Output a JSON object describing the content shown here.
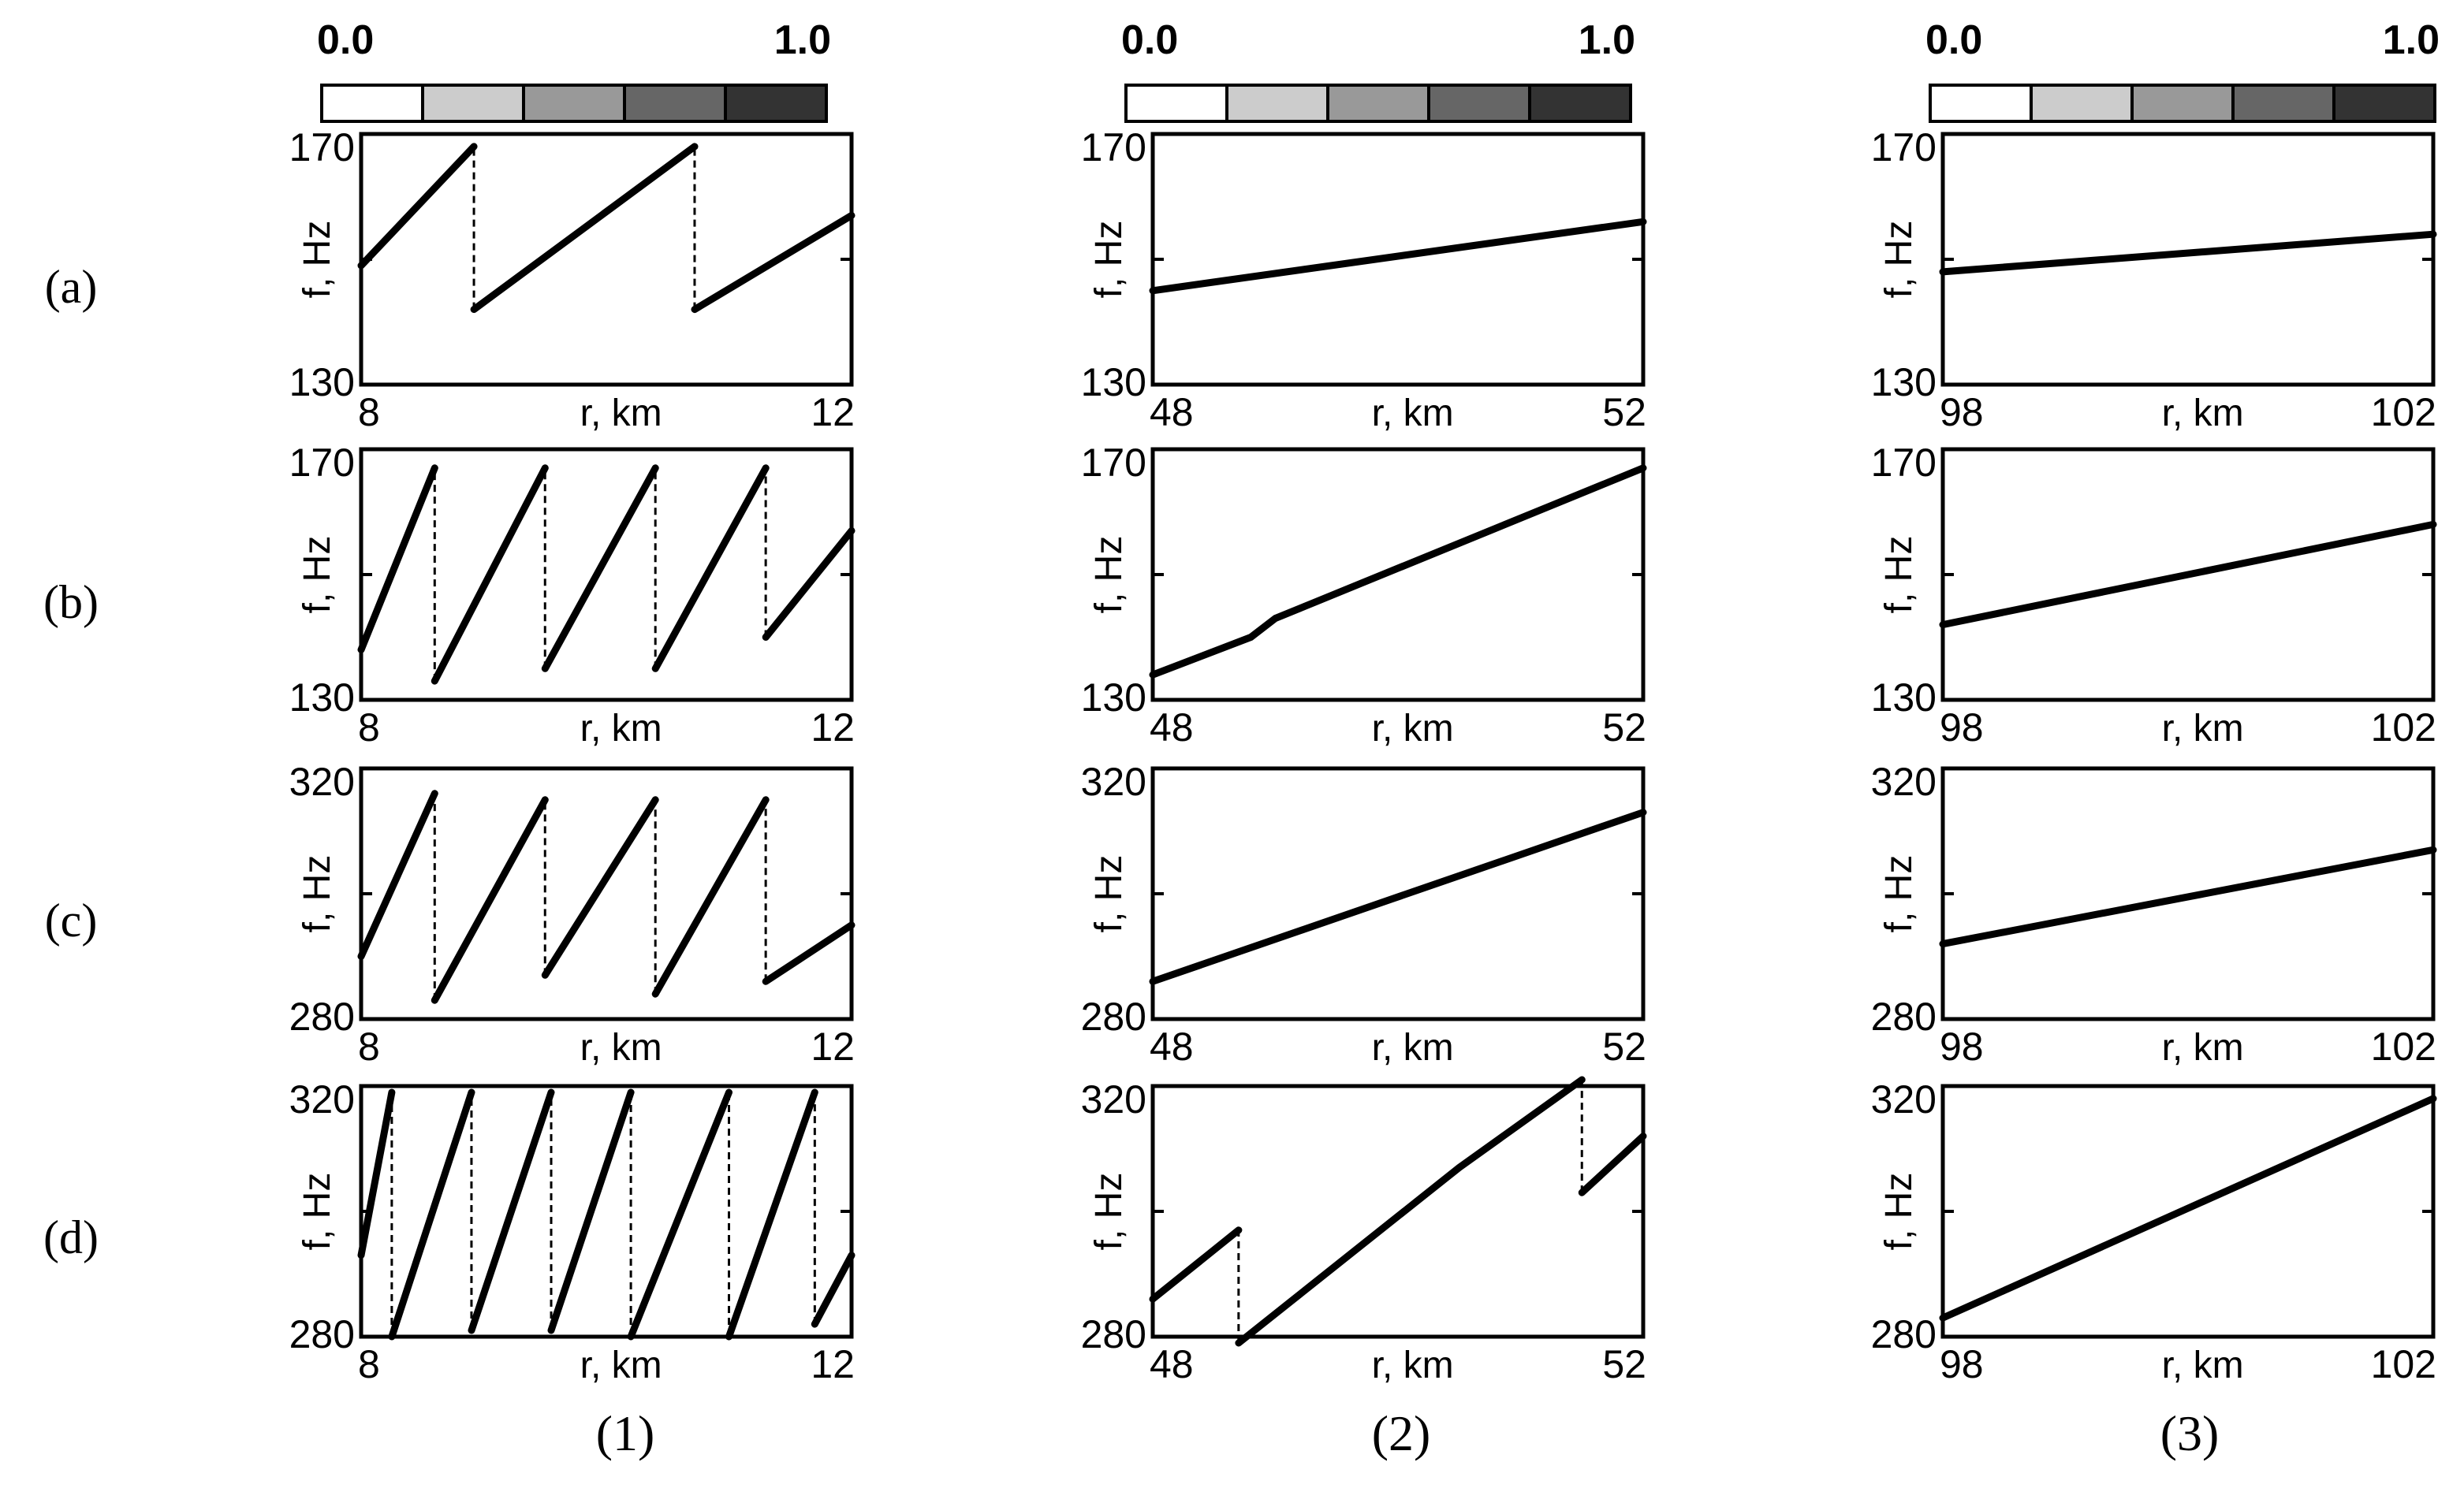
{
  "colorbar": {
    "min_label": "0.0",
    "max_label": "1.0",
    "colors": [
      "#ffffff",
      "#cccccc",
      "#999999",
      "#666666",
      "#333333"
    ]
  },
  "row_labels": [
    "(a)",
    "(b)",
    "(c)",
    "(d)"
  ],
  "column_labels": [
    "(1)",
    "(2)",
    "(3)"
  ],
  "chart_data": [
    {
      "id": "a1",
      "type": "line",
      "row": 0,
      "col": 0,
      "xlabel": "r, km",
      "ylabel": "f, Hz",
      "xlim": [
        8,
        12
      ],
      "ylim": [
        130,
        170
      ],
      "x_tick_labels": [
        "8",
        "12"
      ],
      "y_tick_labels": [
        "130",
        "170"
      ],
      "y_mid_tick": 150,
      "segments": [
        {
          "x": [
            8,
            8.92
          ],
          "y": [
            149,
            168
          ]
        },
        {
          "x": [
            8.92,
            10.72
          ],
          "y": [
            142,
            168
          ]
        },
        {
          "x": [
            10.72,
            12
          ],
          "y": [
            142,
            157
          ]
        }
      ],
      "jumps": [
        {
          "x": 8.92,
          "y": [
            142,
            168
          ]
        },
        {
          "x": 10.72,
          "y": [
            142,
            168
          ]
        }
      ]
    },
    {
      "id": "a2",
      "type": "line",
      "row": 0,
      "col": 1,
      "xlabel": "r, km",
      "ylabel": "f, Hz",
      "xlim": [
        48,
        52
      ],
      "ylim": [
        130,
        170
      ],
      "x_tick_labels": [
        "48",
        "52"
      ],
      "y_tick_labels": [
        "130",
        "170"
      ],
      "y_mid_tick": 150,
      "segments": [
        {
          "x": [
            48,
            52
          ],
          "y": [
            145,
            156
          ]
        }
      ],
      "jumps": []
    },
    {
      "id": "a3",
      "type": "line",
      "row": 0,
      "col": 2,
      "xlabel": "r, km",
      "ylabel": "f, Hz",
      "xlim": [
        98,
        102
      ],
      "ylim": [
        130,
        170
      ],
      "x_tick_labels": [
        "98",
        "102"
      ],
      "y_tick_labels": [
        "130",
        "170"
      ],
      "y_mid_tick": 150,
      "segments": [
        {
          "x": [
            98,
            102
          ],
          "y": [
            148,
            154
          ]
        }
      ],
      "jumps": []
    },
    {
      "id": "b1",
      "type": "line",
      "row": 1,
      "col": 0,
      "xlabel": "r, km",
      "ylabel": "f, Hz",
      "xlim": [
        8,
        12
      ],
      "ylim": [
        130,
        170
      ],
      "x_tick_labels": [
        "8",
        "12"
      ],
      "y_tick_labels": [
        "130",
        "170"
      ],
      "y_mid_tick": 150,
      "segments": [
        {
          "x": [
            8,
            8.6
          ],
          "y": [
            138,
            167
          ]
        },
        {
          "x": [
            8.6,
            9.5
          ],
          "y": [
            133,
            167
          ]
        },
        {
          "x": [
            9.5,
            10.4
          ],
          "y": [
            135,
            167
          ]
        },
        {
          "x": [
            10.4,
            11.3
          ],
          "y": [
            135,
            167
          ]
        },
        {
          "x": [
            11.3,
            12
          ],
          "y": [
            140,
            157
          ]
        }
      ],
      "jumps": [
        {
          "x": 8.6,
          "y": [
            133,
            167
          ]
        },
        {
          "x": 9.5,
          "y": [
            135,
            167
          ]
        },
        {
          "x": 10.4,
          "y": [
            135,
            167
          ]
        },
        {
          "x": 11.3,
          "y": [
            140,
            167
          ]
        }
      ]
    },
    {
      "id": "b2",
      "type": "line",
      "row": 1,
      "col": 1,
      "xlabel": "r, km",
      "ylabel": "f, Hz",
      "xlim": [
        48,
        52
      ],
      "ylim": [
        130,
        170
      ],
      "x_tick_labels": [
        "48",
        "52"
      ],
      "y_tick_labels": [
        "130",
        "170"
      ],
      "y_mid_tick": 150,
      "segments": [
        {
          "x": [
            48,
            48.8,
            49,
            52
          ],
          "y": [
            134,
            140,
            143,
            167
          ]
        }
      ],
      "jumps": []
    },
    {
      "id": "b3",
      "type": "line",
      "row": 1,
      "col": 2,
      "xlabel": "r, km",
      "ylabel": "f, Hz",
      "xlim": [
        98,
        102
      ],
      "ylim": [
        130,
        170
      ],
      "x_tick_labels": [
        "98",
        "102"
      ],
      "y_tick_labels": [
        "130",
        "170"
      ],
      "y_mid_tick": 150,
      "segments": [
        {
          "x": [
            98,
            102
          ],
          "y": [
            142,
            158
          ]
        }
      ],
      "jumps": []
    },
    {
      "id": "c1",
      "type": "line",
      "row": 2,
      "col": 0,
      "xlabel": "r, km",
      "ylabel": "f, Hz",
      "xlim": [
        8,
        12
      ],
      "ylim": [
        280,
        320
      ],
      "x_tick_labels": [
        "8",
        "12"
      ],
      "y_tick_labels": [
        "280",
        "320"
      ],
      "y_mid_tick": 300,
      "segments": [
        {
          "x": [
            8,
            8.6
          ],
          "y": [
            290,
            316
          ]
        },
        {
          "x": [
            8.6,
            9.5
          ],
          "y": [
            283,
            315
          ]
        },
        {
          "x": [
            9.5,
            10.4
          ],
          "y": [
            287,
            315
          ]
        },
        {
          "x": [
            10.4,
            11.3
          ],
          "y": [
            284,
            315
          ]
        },
        {
          "x": [
            11.3,
            12
          ],
          "y": [
            286,
            295
          ]
        }
      ],
      "jumps": [
        {
          "x": 8.6,
          "y": [
            283,
            316
          ]
        },
        {
          "x": 9.5,
          "y": [
            287,
            315
          ]
        },
        {
          "x": 10.4,
          "y": [
            284,
            315
          ]
        },
        {
          "x": 11.3,
          "y": [
            286,
            315
          ]
        }
      ]
    },
    {
      "id": "c2",
      "type": "line",
      "row": 2,
      "col": 1,
      "xlabel": "r, km",
      "ylabel": "f, Hz",
      "xlim": [
        48,
        52
      ],
      "ylim": [
        280,
        320
      ],
      "x_tick_labels": [
        "48",
        "52"
      ],
      "y_tick_labels": [
        "280",
        "320"
      ],
      "y_mid_tick": 300,
      "segments": [
        {
          "x": [
            48,
            52
          ],
          "y": [
            286,
            313
          ]
        }
      ],
      "jumps": []
    },
    {
      "id": "c3",
      "type": "line",
      "row": 2,
      "col": 2,
      "xlabel": "r, km",
      "ylabel": "f, Hz",
      "xlim": [
        98,
        102
      ],
      "ylim": [
        280,
        320
      ],
      "x_tick_labels": [
        "98",
        "102"
      ],
      "y_tick_labels": [
        "280",
        "320"
      ],
      "y_mid_tick": 300,
      "segments": [
        {
          "x": [
            98,
            102
          ],
          "y": [
            292,
            307
          ]
        }
      ],
      "jumps": []
    },
    {
      "id": "d1",
      "type": "line",
      "row": 3,
      "col": 0,
      "xlabel": "r, km",
      "ylabel": "f, Hz",
      "xlim": [
        8,
        12
      ],
      "ylim": [
        280,
        320
      ],
      "x_tick_labels": [
        "8",
        "12"
      ],
      "y_tick_labels": [
        "280",
        "320"
      ],
      "y_mid_tick": 300,
      "segments": [
        {
          "x": [
            8,
            8.25
          ],
          "y": [
            293,
            319
          ]
        },
        {
          "x": [
            8.25,
            8.9
          ],
          "y": [
            280,
            319
          ]
        },
        {
          "x": [
            8.9,
            9.55
          ],
          "y": [
            281,
            319
          ]
        },
        {
          "x": [
            9.55,
            10.2
          ],
          "y": [
            281,
            319
          ]
        },
        {
          "x": [
            10.2,
            11
          ],
          "y": [
            280,
            319
          ]
        },
        {
          "x": [
            11,
            11.7
          ],
          "y": [
            280,
            319
          ]
        },
        {
          "x": [
            11.7,
            12
          ],
          "y": [
            282,
            293
          ]
        }
      ],
      "jumps": [
        {
          "x": 8.25,
          "y": [
            280,
            319
          ]
        },
        {
          "x": 8.9,
          "y": [
            281,
            319
          ]
        },
        {
          "x": 9.55,
          "y": [
            281,
            319
          ]
        },
        {
          "x": 10.2,
          "y": [
            280,
            319
          ]
        },
        {
          "x": 11,
          "y": [
            280,
            319
          ]
        },
        {
          "x": 11.7,
          "y": [
            282,
            319
          ]
        }
      ]
    },
    {
      "id": "d2",
      "type": "line",
      "row": 3,
      "col": 1,
      "xlabel": "r, km",
      "ylabel": "f, Hz",
      "xlim": [
        48,
        52
      ],
      "ylim": [
        280,
        320
      ],
      "x_tick_labels": [
        "48",
        "52"
      ],
      "y_tick_labels": [
        "280",
        "320"
      ],
      "y_mid_tick": 300,
      "segments": [
        {
          "x": [
            48,
            48.7
          ],
          "y": [
            286,
            297
          ]
        },
        {
          "x": [
            48.7,
            50.5,
            51.5
          ],
          "y": [
            279,
            307,
            321
          ]
        },
        {
          "x": [
            51.5,
            52
          ],
          "y": [
            303,
            312
          ]
        }
      ],
      "jumps": [
        {
          "x": 48.7,
          "y": [
            279,
            297
          ]
        },
        {
          "x": 51.5,
          "y": [
            303,
            321
          ]
        }
      ]
    },
    {
      "id": "d3",
      "type": "line",
      "row": 3,
      "col": 2,
      "xlabel": "r, km",
      "ylabel": "f, Hz",
      "xlim": [
        98,
        102
      ],
      "ylim": [
        280,
        320
      ],
      "x_tick_labels": [
        "98",
        "102"
      ],
      "y_tick_labels": [
        "280",
        "320"
      ],
      "y_mid_tick": 300,
      "segments": [
        {
          "x": [
            98,
            102
          ],
          "y": [
            283,
            318
          ]
        }
      ],
      "jumps": []
    }
  ]
}
